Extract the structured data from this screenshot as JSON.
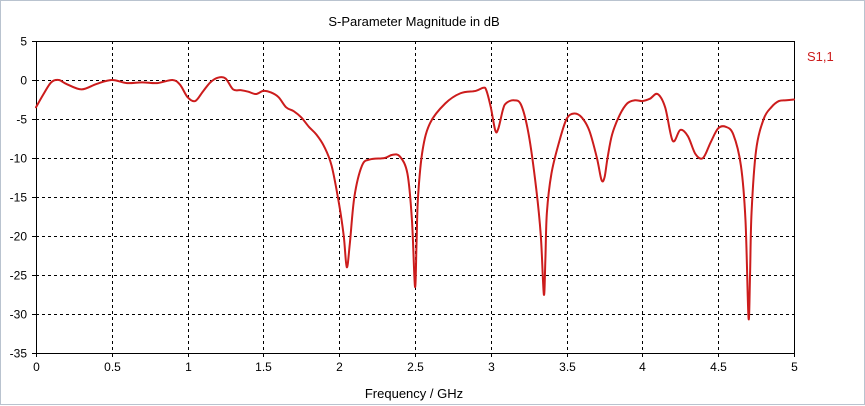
{
  "chart_data": {
    "type": "line",
    "title": "S-Parameter Magnitude in dB",
    "xlabel": "Frequency / GHz",
    "ylabel": "",
    "xlim": [
      0,
      5
    ],
    "ylim": [
      -35,
      5
    ],
    "xticks": [
      0,
      0.5,
      1,
      1.5,
      2,
      2.5,
      3,
      3.5,
      4,
      4.5,
      5
    ],
    "xtick_labels": [
      "0",
      "0.5",
      "1",
      "1.5",
      "2",
      "2.5",
      "3",
      "3.5",
      "4",
      "4.5",
      "5"
    ],
    "yticks": [
      5,
      0,
      -5,
      -10,
      -15,
      -20,
      -25,
      -30,
      -35
    ],
    "ytick_labels": [
      "5",
      "0",
      "-5",
      "-10",
      "-15",
      "-20",
      "-25",
      "-30",
      "-35"
    ],
    "grid": true,
    "legend_position": "top-right",
    "series": [
      {
        "name": "S1,1",
        "color": "#cc1c1c",
        "x": [
          0,
          0.05,
          0.1,
          0.15,
          0.2,
          0.3,
          0.4,
          0.5,
          0.6,
          0.7,
          0.8,
          0.9,
          0.95,
          1.0,
          1.05,
          1.1,
          1.15,
          1.2,
          1.25,
          1.3,
          1.35,
          1.4,
          1.45,
          1.5,
          1.55,
          1.6,
          1.65,
          1.7,
          1.75,
          1.8,
          1.85,
          1.9,
          1.95,
          2.0,
          2.03,
          2.05,
          2.07,
          2.1,
          2.15,
          2.2,
          2.3,
          2.35,
          2.4,
          2.45,
          2.48,
          2.5,
          2.51,
          2.52,
          2.55,
          2.6,
          2.7,
          2.8,
          2.9,
          2.95,
          2.97,
          3.0,
          3.03,
          3.05,
          3.08,
          3.1,
          3.15,
          3.2,
          3.25,
          3.3,
          3.33,
          3.35,
          3.36,
          3.37,
          3.4,
          3.45,
          3.5,
          3.55,
          3.6,
          3.65,
          3.7,
          3.73,
          3.75,
          3.77,
          3.8,
          3.85,
          3.9,
          3.95,
          4.0,
          4.05,
          4.1,
          4.15,
          4.2,
          4.25,
          4.3,
          4.35,
          4.4,
          4.45,
          4.5,
          4.55,
          4.6,
          4.65,
          4.68,
          4.7,
          4.71,
          4.72,
          4.75,
          4.8,
          4.85,
          4.9,
          4.95,
          5.0
        ],
        "y": [
          -3.5,
          -1.8,
          -0.3,
          0,
          -0.5,
          -1.2,
          -0.5,
          0,
          -0.4,
          -0.3,
          -0.4,
          0,
          -0.6,
          -2.2,
          -2.7,
          -1.5,
          -0.3,
          0.3,
          0.2,
          -1.2,
          -1.3,
          -1.5,
          -1.8,
          -1.4,
          -1.6,
          -2.2,
          -3.5,
          -4,
          -4.8,
          -6,
          -7,
          -8.5,
          -11,
          -16,
          -20,
          -24,
          -21,
          -15,
          -11,
          -10.2,
          -10,
          -9.6,
          -9.8,
          -12,
          -18,
          -26.5,
          -21,
          -15,
          -9,
          -5.5,
          -3,
          -1.7,
          -1.4,
          -1,
          -1.3,
          -3.5,
          -6.5,
          -6.2,
          -3.8,
          -3,
          -2.6,
          -3.2,
          -7,
          -14,
          -20,
          -27.5,
          -23,
          -17,
          -12,
          -8,
          -5,
          -4.3,
          -4.8,
          -6.5,
          -10,
          -12.8,
          -12.5,
          -10,
          -7,
          -4.5,
          -3,
          -2.6,
          -2.7,
          -2.4,
          -1.8,
          -3.5,
          -7.8,
          -6.4,
          -7.2,
          -9.5,
          -10,
          -8,
          -6.2,
          -6,
          -7,
          -11,
          -18,
          -30.5,
          -25,
          -17,
          -9,
          -5,
          -3.5,
          -2.7,
          -2.6,
          -2.5
        ]
      }
    ]
  }
}
